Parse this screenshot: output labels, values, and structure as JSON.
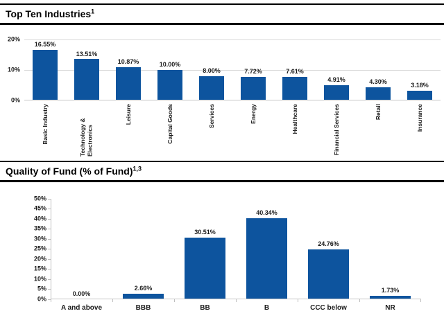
{
  "sections": [
    {
      "title": "Top Ten Industries",
      "superscript": "1"
    },
    {
      "title": "Quality of Fund (% of Fund)",
      "superscript": "1,3"
    }
  ],
  "colors": {
    "bar": "#0d549e",
    "gridline": "#d9d9d9",
    "baseline": "#c6c6c6",
    "axis": "#bfbfbf",
    "chart_text": "#1a1a1a",
    "title_text": "#000000",
    "rule": "#000000"
  },
  "chart_data": [
    {
      "type": "bar",
      "title": "Top Ten Industries",
      "categories": [
        "Basic Industry",
        "Technology & Electronics",
        "Leisure",
        "Capital Goods",
        "Services",
        "Energy",
        "Healthcare",
        "Financial Services",
        "Retail",
        "Insurance"
      ],
      "values": [
        16.55,
        13.51,
        10.87,
        10.0,
        8.0,
        7.72,
        7.61,
        4.91,
        4.3,
        3.18
      ],
      "value_labels": [
        "16.55%",
        "13.51%",
        "10.87%",
        "10.00%",
        "8.00%",
        "7.72%",
        "7.61%",
        "4.91%",
        "4.30%",
        "3.18%"
      ],
      "yticks": [
        "20%",
        "10%",
        "0%"
      ],
      "ylim": [
        0,
        20
      ],
      "grid": true,
      "y_axis_line": false,
      "y_tick_marks": false,
      "x_tick_marks": false,
      "x_label_rotation": 90,
      "legend": "none"
    },
    {
      "type": "bar",
      "title": "Quality of Fund (% of Fund)",
      "categories": [
        "A and above",
        "BBB",
        "BB",
        "B",
        "CCC below",
        "NR"
      ],
      "values": [
        0.0,
        2.66,
        30.51,
        40.34,
        24.76,
        1.73
      ],
      "value_labels": [
        "0.00%",
        "2.66%",
        "30.51%",
        "40.34%",
        "24.76%",
        "1.73%"
      ],
      "yticks": [
        "50%",
        "45%",
        "40%",
        "35%",
        "30%",
        "25%",
        "20%",
        "15%",
        "10%",
        "5%",
        "0%"
      ],
      "ylim": [
        0,
        50
      ],
      "grid": false,
      "y_axis_line": true,
      "y_tick_marks": true,
      "x_tick_marks": true,
      "x_label_rotation": 0,
      "legend": "none"
    }
  ]
}
